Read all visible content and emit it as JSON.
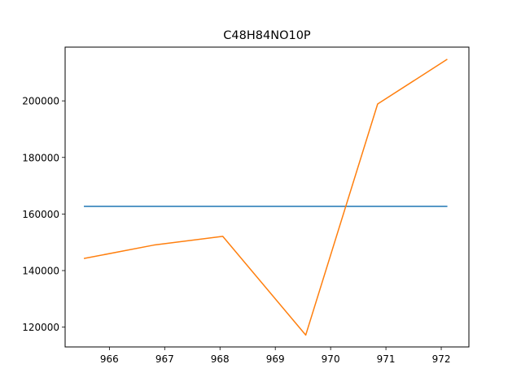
{
  "chart_data": {
    "type": "line",
    "title": "C48H84NO10P",
    "xlabel": "",
    "ylabel": "",
    "xlim": [
      965.2,
      972.5
    ],
    "ylim": [
      113000,
      219000
    ],
    "grid": false,
    "x_ticks": [
      966,
      967,
      968,
      969,
      970,
      971,
      972
    ],
    "y_ticks": [
      120000,
      140000,
      160000,
      180000,
      200000
    ],
    "series": [
      {
        "color": "#1f77b4",
        "x": [
          965.55,
          972.1
        ],
        "y": [
          162700,
          162700
        ]
      },
      {
        "color": "#ff7f0e",
        "x": [
          965.55,
          966.8,
          968.05,
          969.55,
          970.85,
          972.1
        ],
        "y": [
          144300,
          149000,
          152100,
          117200,
          198900,
          214600
        ]
      }
    ]
  }
}
